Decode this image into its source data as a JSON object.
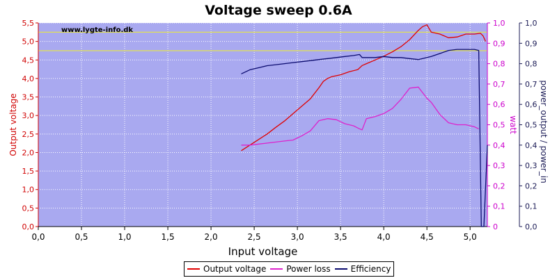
{
  "colors": {
    "plot_bg": "#a9a9f0",
    "grid": "#ffffff",
    "output_voltage": "#e00000",
    "power_loss": "#dd22cc",
    "efficiency": "#0a0a6e",
    "ref_lines": "#e8e840",
    "left_axis": "#d00000",
    "right_axis1": "#cc00cc",
    "right_axis2": "#1a1a55"
  },
  "chart_data": {
    "type": "line",
    "title": "Voltage sweep 0.6A",
    "watermark": "www.lygte-info.dk",
    "xlabel": "Input voltage",
    "ylabel_left": "Output voltage",
    "ylabel_right1": "watt",
    "ylabel_right2": "power_output / power_in",
    "xlim": [
      0,
      5.2
    ],
    "ylim_left": [
      0,
      5.5
    ],
    "ylim_right1": [
      0,
      1
    ],
    "ylim_right2": [
      0,
      1
    ],
    "grid": true,
    "legend_position": "bottom-center",
    "x_ticks": [
      "0,0",
      "0,5",
      "1,0",
      "1,5",
      "2,0",
      "2,5",
      "3,0",
      "3,5",
      "4,0",
      "4,5",
      "5,0"
    ],
    "y_left_ticks": [
      "0,0",
      "0,5",
      "1,0",
      "1,5",
      "2,0",
      "2,5",
      "3,0",
      "3,5",
      "4,0",
      "4,5",
      "5,0",
      "5,5"
    ],
    "y_right1_ticks": [
      "0",
      "0,1",
      "0,2",
      "0,3",
      "0,4",
      "0,5",
      "0,6",
      "0,7",
      "0,8",
      "0,9",
      "1,0"
    ],
    "y_right2_ticks": [
      "0,0",
      "0,1",
      "0,2",
      "0,3",
      "0,4",
      "0,5",
      "0,6",
      "0,7",
      "0,8",
      "0,9",
      "1,0"
    ],
    "reference_lines_left": [
      5.25,
      4.75
    ],
    "series": [
      {
        "name": "Output voltage",
        "axis": "left",
        "x": [
          2.35,
          2.45,
          2.55,
          2.65,
          2.75,
          2.85,
          2.95,
          3.05,
          3.15,
          3.25,
          3.3,
          3.35,
          3.4,
          3.5,
          3.6,
          3.7,
          3.75,
          3.8,
          3.9,
          4.0,
          4.1,
          4.2,
          4.3,
          4.4,
          4.45,
          4.5,
          4.55,
          4.65,
          4.75,
          4.85,
          4.95,
          5.05,
          5.12,
          5.15,
          5.18
        ],
        "y": [
          2.05,
          2.2,
          2.35,
          2.5,
          2.68,
          2.85,
          3.05,
          3.25,
          3.45,
          3.75,
          3.92,
          4.0,
          4.05,
          4.1,
          4.18,
          4.24,
          4.35,
          4.4,
          4.5,
          4.6,
          4.72,
          4.86,
          5.05,
          5.3,
          5.4,
          5.45,
          5.25,
          5.2,
          5.1,
          5.12,
          5.2,
          5.2,
          5.22,
          5.15,
          5.0
        ]
      },
      {
        "name": "Power loss",
        "axis": "right1",
        "x": [
          2.35,
          2.45,
          2.55,
          2.65,
          2.75,
          2.85,
          2.95,
          3.05,
          3.15,
          3.25,
          3.35,
          3.45,
          3.55,
          3.65,
          3.72,
          3.75,
          3.8,
          3.9,
          4.0,
          4.1,
          4.2,
          4.3,
          4.4,
          4.5,
          4.55,
          4.65,
          4.75,
          4.85,
          4.95,
          5.05,
          5.1
        ],
        "y": [
          0.4,
          0.4,
          0.405,
          0.41,
          0.415,
          0.42,
          0.425,
          0.445,
          0.47,
          0.52,
          0.53,
          0.525,
          0.505,
          0.495,
          0.48,
          0.475,
          0.53,
          0.54,
          0.555,
          0.58,
          0.625,
          0.68,
          0.685,
          0.63,
          0.61,
          0.55,
          0.51,
          0.5,
          0.5,
          0.49,
          0.48
        ]
      },
      {
        "name": "Efficiency",
        "axis": "right2",
        "x": [
          2.35,
          2.45,
          2.55,
          2.65,
          2.75,
          2.85,
          2.95,
          3.05,
          3.15,
          3.25,
          3.35,
          3.45,
          3.55,
          3.65,
          3.72,
          3.75,
          3.8,
          3.9,
          4.0,
          4.1,
          4.2,
          4.3,
          4.4,
          4.5,
          4.55,
          4.65,
          4.75,
          4.85,
          4.95,
          5.05,
          5.1,
          5.13,
          5.16,
          5.2
        ],
        "y": [
          0.75,
          0.77,
          0.78,
          0.79,
          0.795,
          0.8,
          0.805,
          0.81,
          0.815,
          0.82,
          0.825,
          0.83,
          0.835,
          0.84,
          0.845,
          0.83,
          0.83,
          0.83,
          0.835,
          0.83,
          0.83,
          0.825,
          0.82,
          0.83,
          0.835,
          0.85,
          0.865,
          0.87,
          0.87,
          0.87,
          0.865,
          0.0,
          0.0,
          0.4
        ]
      }
    ]
  }
}
